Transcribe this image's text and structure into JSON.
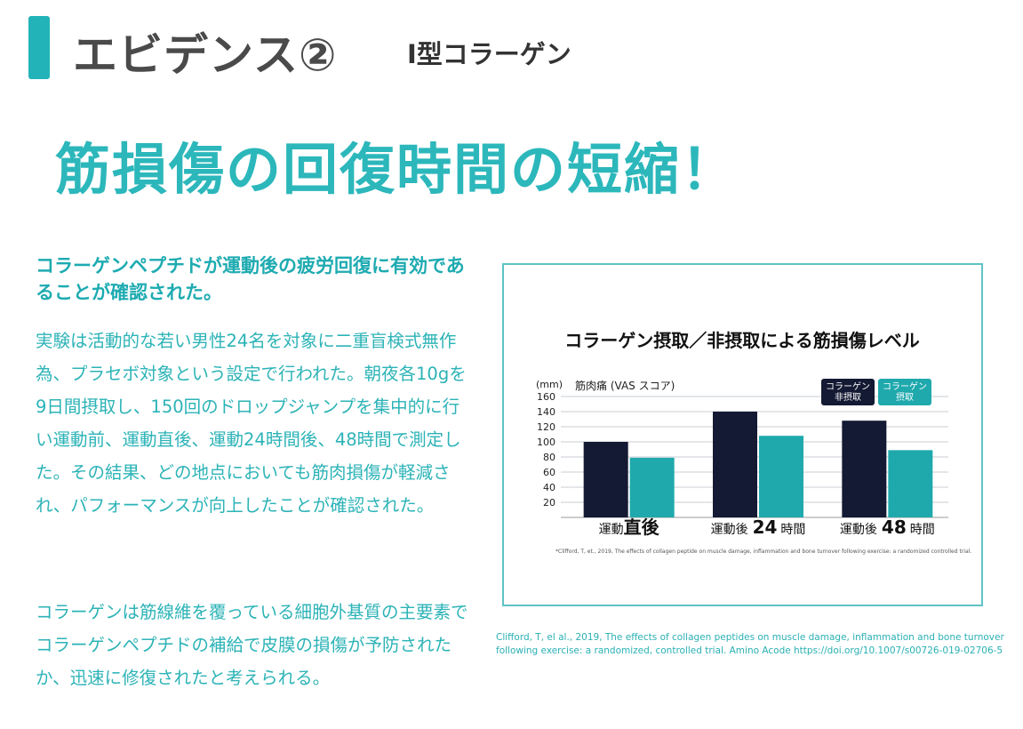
{
  "header": {
    "title": "エビデンス②",
    "subtitle": "Ⅰ型コラーゲン"
  },
  "headline": "筋損傷の回復時間の短縮！",
  "lead": "コラーゲンペプチドが運動後の疲労回復に有効であることが確認された。",
  "paragraphs": {
    "p1": "実験は活動的な若い男性24名を対象に二重盲検式無作為、プラセボ対象という設定で行われた。朝夜各10gを9日間摂取し、150回のドロップジャンプを集中的に行い運動前、運動直後、運動24時間後、48時間で測定した。その結果、どの地点においても筋肉損傷が軽減され、パフォーマンスが向上したことが確認された。",
    "p2": "コラーゲンは筋線維を覆っている細胞外基質の主要素でコラーゲンペプチドの補給で皮膜の損傷が予防されたか、迅速に修復されたと考えられる。"
  },
  "chart_data": {
    "type": "bar",
    "title": "コラーゲン摂取／非摂取による筋損傷レベル",
    "ylabel": "筋肉痛 (VAS スコア)",
    "yunit": "(mm)",
    "ylim": [
      0,
      160
    ],
    "yticks": [
      20,
      40,
      60,
      80,
      100,
      120,
      140,
      160
    ],
    "categories": [
      {
        "prefix": "運動",
        "emph": "直後",
        "suffix": ""
      },
      {
        "prefix": "運動後",
        "emph": "24",
        "suffix": "時間"
      },
      {
        "prefix": "運動後",
        "emph": "48",
        "suffix": "時間"
      }
    ],
    "series": [
      {
        "name": "コラーゲン非摂取",
        "label_lines": [
          "コラーゲン",
          "非摂取"
        ],
        "color": "#141a33",
        "values": [
          100,
          140,
          128
        ]
      },
      {
        "name": "コラーゲン摂取",
        "label_lines": [
          "コラーゲン",
          "摂取"
        ],
        "color": "#1fa9ad",
        "values": [
          79,
          108,
          89
        ]
      }
    ],
    "grid": true,
    "legend_position": "top-right",
    "footnote": "*Clifford, T, et., 2019, The effects of collagen peptide on muscle damage, inflammation and bone turnover following exercise: a randomized controlled trial."
  },
  "citation": "Clifford, T, el al., 2019, The effects of collagen peptides on muscle damage, inflammation and bone turnover following exercise: a randomized, controlled trial. Amino Acode https://doi.org/10.1007/s00726-019-02706-5",
  "colors": {
    "accent": "#22b3b8",
    "headline": "#2cb7bb",
    "text_teal": "#2cb3b7",
    "chart_border": "#5fc3c4"
  }
}
